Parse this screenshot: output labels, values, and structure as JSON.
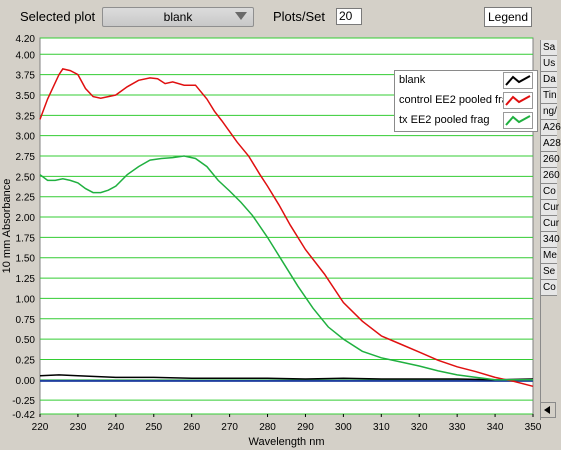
{
  "toolbar": {
    "selected_plot_label": "Selected plot",
    "selected_plot_value": "blank",
    "plots_per_set_label": "Plots/Set",
    "plots_per_set_value": "20",
    "legend_button": "Legend"
  },
  "legend": {
    "items": [
      {
        "name": "blank",
        "color": "#000000"
      },
      {
        "name": "control EE2 pooled fra",
        "color": "#e01010"
      },
      {
        "name": "tx EE2 pooled frag",
        "color": "#20b040"
      }
    ]
  },
  "side_panel": {
    "rows": [
      "Sa",
      "Us",
      "Da",
      "Tin",
      "ng/",
      "A26",
      "A28",
      "260",
      "260",
      "Co",
      "Cur",
      "Cur",
      "340",
      "Me",
      "Se",
      "Co"
    ]
  },
  "chart_data": {
    "type": "line",
    "xlabel": "Wavelength nm",
    "ylabel": "10 mm Absorbance",
    "xlim": [
      220,
      350
    ],
    "ylim": [
      -0.42,
      4.2
    ],
    "x_ticks": [
      220,
      230,
      240,
      250,
      260,
      270,
      280,
      290,
      300,
      310,
      320,
      330,
      340,
      350
    ],
    "y_ticks": [
      "4.20",
      "4.00",
      "3.75",
      "3.50",
      "3.25",
      "3.00",
      "2.75",
      "2.50",
      "2.25",
      "2.00",
      "1.75",
      "1.50",
      "1.25",
      "1.00",
      "0.75",
      "0.50",
      "0.25",
      "0.00",
      "-0.25",
      "-0.42"
    ],
    "grid": true,
    "grid_color": "#33cc33",
    "background": "#ffffff",
    "legend_position": "top-right",
    "series": [
      {
        "name": "blank",
        "color": "#000000",
        "x": [
          220,
          225,
          230,
          240,
          250,
          260,
          270,
          280,
          290,
          300,
          310,
          320,
          330,
          340,
          350
        ],
        "y": [
          0.05,
          0.06,
          0.05,
          0.03,
          0.03,
          0.02,
          0.02,
          0.02,
          0.01,
          0.02,
          0.01,
          0.01,
          0.01,
          0.0,
          0.01
        ]
      },
      {
        "name": "control EE2 pooled fra",
        "color": "#e01010",
        "x": [
          220,
          222,
          225,
          226,
          228,
          230,
          232,
          234,
          236,
          238,
          240,
          243,
          246,
          249,
          251,
          253,
          255,
          258,
          261,
          264,
          266,
          268,
          270,
          272,
          275,
          278,
          280,
          283,
          286,
          290,
          295,
          300,
          305,
          310,
          315,
          320,
          325,
          330,
          335,
          340,
          345,
          350
        ],
        "y": [
          3.2,
          3.45,
          3.75,
          3.82,
          3.8,
          3.75,
          3.58,
          3.48,
          3.46,
          3.48,
          3.5,
          3.6,
          3.68,
          3.71,
          3.7,
          3.64,
          3.66,
          3.62,
          3.62,
          3.45,
          3.3,
          3.18,
          3.05,
          2.92,
          2.75,
          2.52,
          2.38,
          2.15,
          1.9,
          1.6,
          1.3,
          0.95,
          0.72,
          0.54,
          0.44,
          0.34,
          0.24,
          0.16,
          0.1,
          0.03,
          -0.02,
          -0.08
        ]
      },
      {
        "name": "tx EE2 pooled frag",
        "color": "#20b040",
        "x": [
          220,
          222,
          224,
          226,
          228,
          230,
          232,
          234,
          236,
          238,
          240,
          243,
          246,
          249,
          252,
          255,
          258,
          261,
          264,
          267,
          270,
          273,
          276,
          280,
          284,
          288,
          292,
          296,
          300,
          305,
          310,
          315,
          320,
          325,
          330,
          335,
          340,
          345,
          350
        ],
        "y": [
          2.52,
          2.45,
          2.45,
          2.47,
          2.45,
          2.42,
          2.35,
          2.3,
          2.3,
          2.33,
          2.38,
          2.52,
          2.62,
          2.7,
          2.72,
          2.73,
          2.75,
          2.72,
          2.62,
          2.45,
          2.32,
          2.18,
          2.02,
          1.75,
          1.45,
          1.15,
          0.88,
          0.65,
          0.5,
          0.35,
          0.27,
          0.22,
          0.17,
          0.11,
          0.06,
          0.03,
          0.0,
          0.0,
          0.0
        ]
      }
    ]
  }
}
